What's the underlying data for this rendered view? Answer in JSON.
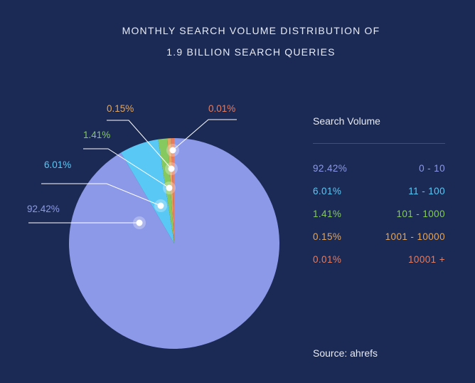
{
  "chart_data": {
    "type": "pie",
    "title": "MONTHLY SEARCH VOLUME DISTRIBUTION OF",
    "subtitle": "1.9 BILLION SEARCH QUERIES",
    "legend_title": "Search Volume",
    "legend_position": "right",
    "source": "Source: ahrefs",
    "categories": [
      "0 - 10",
      "11 - 100",
      "101 - 1000",
      "1001 - 10000",
      "10001 +"
    ],
    "values": [
      92.42,
      6.01,
      1.41,
      0.15,
      0.01
    ],
    "labels": [
      "92.42%",
      "6.01%",
      "1.41%",
      "0.15%",
      "0.01%"
    ],
    "colors": [
      "#8c99e8",
      "#5ac8f5",
      "#86c95f",
      "#e3a65e",
      "#e87c5f"
    ]
  }
}
